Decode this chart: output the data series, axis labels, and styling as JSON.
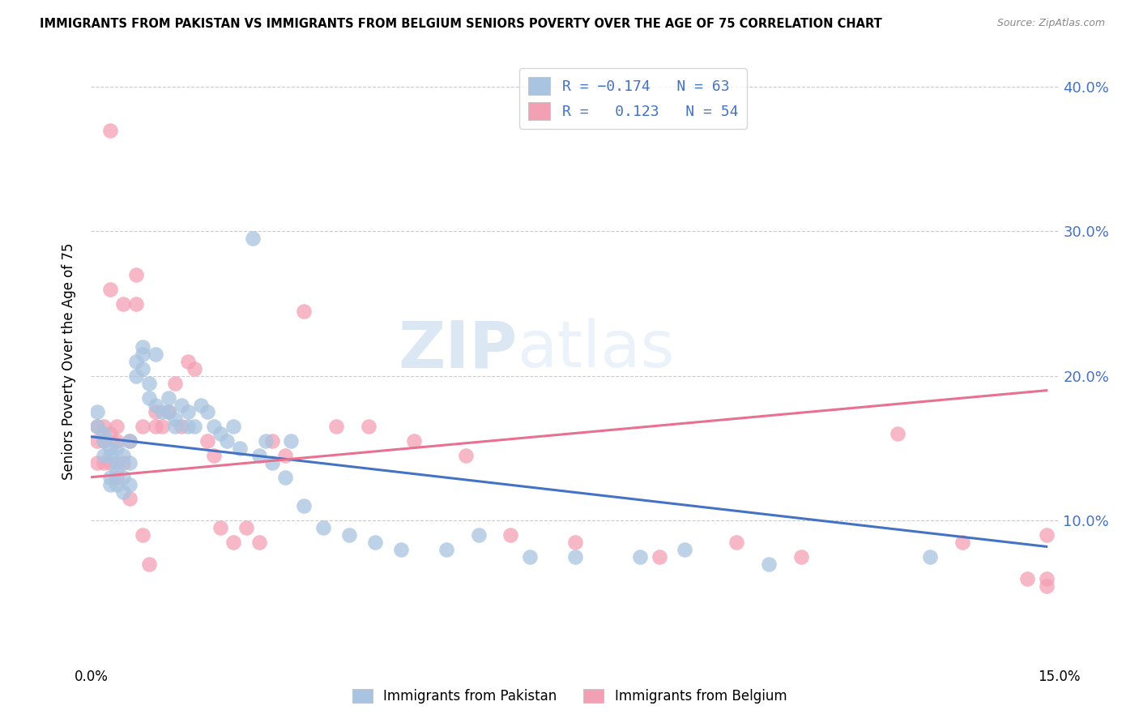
{
  "title": "IMMIGRANTS FROM PAKISTAN VS IMMIGRANTS FROM BELGIUM SENIORS POVERTY OVER THE AGE OF 75 CORRELATION CHART",
  "source": "Source: ZipAtlas.com",
  "ylabel": "Seniors Poverty Over the Age of 75",
  "xlim": [
    0.0,
    0.15
  ],
  "ylim": [
    0.0,
    0.42
  ],
  "pakistan_R": -0.174,
  "pakistan_N": 63,
  "belgium_R": 0.123,
  "belgium_N": 54,
  "pakistan_color": "#a8c4e0",
  "belgium_color": "#f4a0b4",
  "pakistan_line_color": "#4472c4",
  "belgium_line_color": "#e87090",
  "watermark_zip": "ZIP",
  "watermark_atlas": "atlas",
  "pakistan_x": [
    0.001,
    0.001,
    0.002,
    0.002,
    0.002,
    0.003,
    0.003,
    0.003,
    0.003,
    0.004,
    0.004,
    0.004,
    0.004,
    0.005,
    0.005,
    0.005,
    0.006,
    0.006,
    0.006,
    0.007,
    0.007,
    0.008,
    0.008,
    0.008,
    0.009,
    0.009,
    0.01,
    0.01,
    0.011,
    0.012,
    0.012,
    0.013,
    0.013,
    0.014,
    0.015,
    0.015,
    0.016,
    0.017,
    0.018,
    0.019,
    0.02,
    0.021,
    0.022,
    0.023,
    0.025,
    0.026,
    0.027,
    0.028,
    0.03,
    0.031,
    0.033,
    0.036,
    0.04,
    0.044,
    0.048,
    0.055,
    0.06,
    0.068,
    0.075,
    0.085,
    0.092,
    0.105,
    0.13
  ],
  "pakistan_y": [
    0.165,
    0.175,
    0.155,
    0.145,
    0.16,
    0.15,
    0.145,
    0.13,
    0.125,
    0.15,
    0.14,
    0.135,
    0.125,
    0.145,
    0.13,
    0.12,
    0.155,
    0.14,
    0.125,
    0.21,
    0.2,
    0.22,
    0.215,
    0.205,
    0.195,
    0.185,
    0.215,
    0.18,
    0.175,
    0.185,
    0.175,
    0.17,
    0.165,
    0.18,
    0.175,
    0.165,
    0.165,
    0.18,
    0.175,
    0.165,
    0.16,
    0.155,
    0.165,
    0.15,
    0.295,
    0.145,
    0.155,
    0.14,
    0.13,
    0.155,
    0.11,
    0.095,
    0.09,
    0.085,
    0.08,
    0.08,
    0.09,
    0.075,
    0.075,
    0.075,
    0.08,
    0.07,
    0.075
  ],
  "belgium_x": [
    0.001,
    0.001,
    0.001,
    0.002,
    0.002,
    0.002,
    0.003,
    0.003,
    0.003,
    0.003,
    0.004,
    0.004,
    0.004,
    0.005,
    0.005,
    0.006,
    0.006,
    0.007,
    0.007,
    0.008,
    0.008,
    0.009,
    0.01,
    0.01,
    0.011,
    0.012,
    0.013,
    0.014,
    0.015,
    0.016,
    0.018,
    0.019,
    0.02,
    0.022,
    0.024,
    0.026,
    0.028,
    0.03,
    0.033,
    0.038,
    0.043,
    0.05,
    0.058,
    0.065,
    0.075,
    0.088,
    0.1,
    0.11,
    0.125,
    0.135,
    0.145,
    0.148,
    0.148,
    0.148
  ],
  "belgium_y": [
    0.165,
    0.155,
    0.14,
    0.165,
    0.155,
    0.14,
    0.37,
    0.26,
    0.16,
    0.14,
    0.165,
    0.155,
    0.13,
    0.25,
    0.14,
    0.155,
    0.115,
    0.27,
    0.25,
    0.165,
    0.09,
    0.07,
    0.175,
    0.165,
    0.165,
    0.175,
    0.195,
    0.165,
    0.21,
    0.205,
    0.155,
    0.145,
    0.095,
    0.085,
    0.095,
    0.085,
    0.155,
    0.145,
    0.245,
    0.165,
    0.165,
    0.155,
    0.145,
    0.09,
    0.085,
    0.075,
    0.085,
    0.075,
    0.16,
    0.085,
    0.06,
    0.06,
    0.055,
    0.09
  ]
}
